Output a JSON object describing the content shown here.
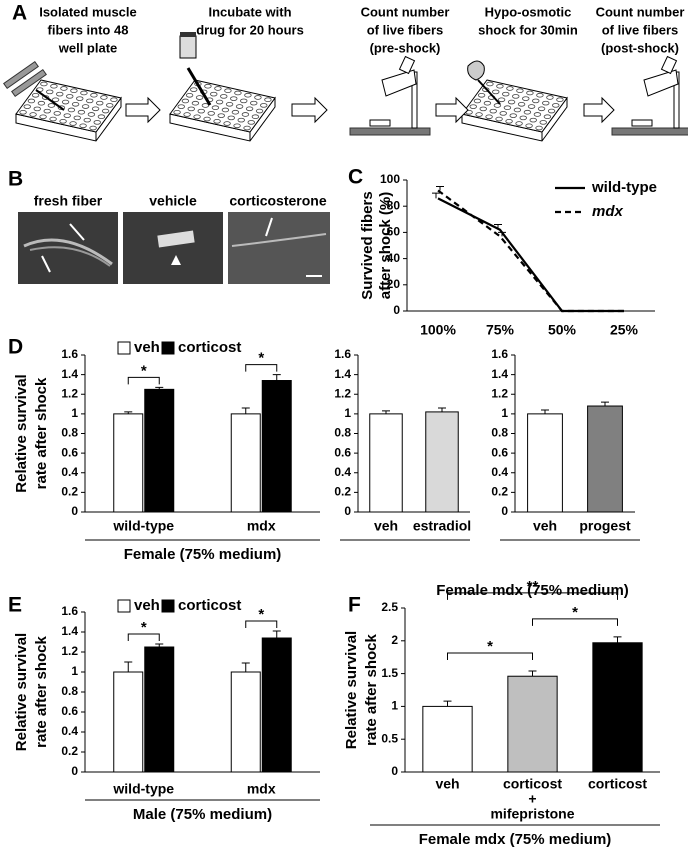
{
  "panel_labels": [
    "A",
    "B",
    "C",
    "D",
    "E",
    "F"
  ],
  "workflow": {
    "steps": [
      [
        "Isolated muscle",
        "fibers into 48",
        "well plate"
      ],
      [
        "Incubate with",
        "drug for 20 hours"
      ],
      [
        "Count number",
        "of live fibers",
        "(pre-shock)"
      ],
      [
        "Hypo-osmotic",
        "shock for 30min"
      ],
      [
        "Count number",
        "of live fibers",
        "(post-shock)"
      ]
    ]
  },
  "micrographs": {
    "labels": [
      "fresh fiber",
      "vehicle",
      "corticosterone"
    ]
  },
  "chart_data": [
    {
      "type": "line",
      "ylabel": [
        "Survived  fibers",
        "after shock (%)"
      ],
      "categories": [
        "100%",
        "75%",
        "50%",
        "25%"
      ],
      "series": [
        {
          "name": "wild-type",
          "color": "#000000",
          "line_style": "solid",
          "values": [
            86,
            62,
            0,
            0
          ],
          "errors": [
            4,
            4,
            0,
            0
          ]
        },
        {
          "name": "mdx",
          "color": "#000000",
          "line_style": "dashed",
          "label_style": "italic",
          "values": [
            92,
            57,
            0,
            0
          ],
          "errors": [
            3,
            3,
            0,
            0
          ]
        }
      ],
      "ylim": [
        0,
        100
      ],
      "yticks": [
        0,
        20,
        40,
        60,
        80,
        100
      ],
      "legend": "upper right"
    },
    {
      "type": "bar",
      "ylabel": [
        "Relative survival",
        "rate after shock"
      ],
      "xlabel": "Female (75% medium)",
      "categories": [
        "wild-type",
        "mdx"
      ],
      "series": [
        {
          "name": "veh",
          "color": "#ffffff",
          "values": [
            1,
            1
          ],
          "errors": [
            0.02,
            0.06
          ]
        },
        {
          "name": "corticost",
          "color": "#000000",
          "values": [
            1.25,
            1.34
          ],
          "errors": [
            0.02,
            0.06
          ]
        }
      ],
      "significance": [
        "*",
        "*"
      ],
      "ylim": [
        0,
        1.6
      ],
      "yticks": [
        0,
        0.2,
        0.4,
        0.6,
        0.8,
        1,
        1.2,
        1.4,
        1.6
      ],
      "legend": "upper left"
    },
    {
      "type": "bar",
      "categories": [
        "veh",
        "estradiol"
      ],
      "values": [
        1,
        1.02
      ],
      "errors": [
        0.03,
        0.04
      ],
      "colors": [
        "#ffffff",
        "#d9d9d9"
      ],
      "ylim": [
        0,
        1.6
      ],
      "yticks": [
        0,
        0.2,
        0.4,
        0.6,
        0.8,
        1,
        1.2,
        1.4,
        1.6
      ]
    },
    {
      "type": "bar",
      "categories": [
        "veh",
        "progest"
      ],
      "values": [
        1,
        1.08
      ],
      "errors": [
        0.04,
        0.04
      ],
      "colors": [
        "#ffffff",
        "#808080"
      ],
      "ylim": [
        0,
        1.6
      ],
      "yticks": [
        0,
        0.2,
        0.4,
        0.6,
        0.8,
        1,
        1.2,
        1.4,
        1.6
      ]
    },
    {
      "type": "bar",
      "ylabel": [
        "Relative survival",
        "rate after shock"
      ],
      "xlabel": "Male (75% medium)",
      "categories": [
        "wild-type",
        "mdx"
      ],
      "series": [
        {
          "name": "veh",
          "color": "#ffffff",
          "values": [
            1,
            1
          ],
          "errors": [
            0.1,
            0.09
          ]
        },
        {
          "name": "corticost",
          "color": "#000000",
          "values": [
            1.25,
            1.34
          ],
          "errors": [
            0.03,
            0.07
          ]
        }
      ],
      "significance": [
        "*",
        "*"
      ],
      "ylim": [
        0,
        1.6
      ],
      "yticks": [
        0,
        0.2,
        0.4,
        0.6,
        0.8,
        1,
        1.2,
        1.4,
        1.6
      ],
      "legend": "upper left"
    },
    {
      "type": "bar",
      "title": "Female mdx (75% medium)",
      "ylabel": [
        "Relative survival",
        "rate after shock"
      ],
      "xlabel": "Female mdx (75% medium)",
      "categories": [
        "veh",
        [
          "corticost",
          "+",
          "mifepristone"
        ],
        "corticost"
      ],
      "values": [
        1,
        1.46,
        1.97
      ],
      "errors": [
        0.08,
        0.08,
        0.09
      ],
      "colors": [
        "#ffffff",
        "#bfbfbf",
        "#000000"
      ],
      "comparisons": [
        {
          "between": [
            0,
            1
          ],
          "label": "*"
        },
        {
          "between": [
            1,
            2
          ],
          "label": "*"
        },
        {
          "between": [
            0,
            2
          ],
          "label": "**"
        }
      ],
      "ylim": [
        0,
        2.5
      ],
      "yticks": [
        0,
        0.5,
        1,
        1.5,
        2,
        2.5
      ]
    }
  ]
}
